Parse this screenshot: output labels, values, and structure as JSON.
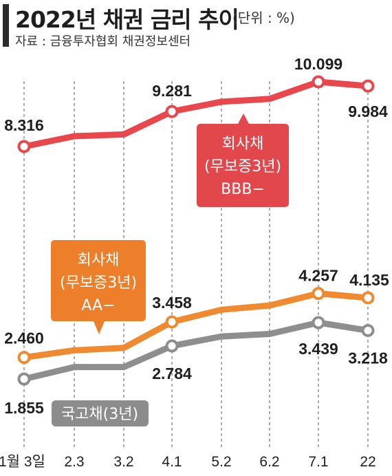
{
  "header": {
    "title": "2022년 채권 금리 추이",
    "unit": "(단위 : %)",
    "source": "자료 : 금융투자협회 채권정보센터"
  },
  "colors": {
    "bbb": "#e8474b",
    "bbb_box": "#e2474b",
    "aa": "#f08a30",
    "aa_box": "#ee7f2a",
    "gov": "#8e8e8e",
    "gov_box": "#8c8c8c",
    "grid": "#555555"
  },
  "chart_data": {
    "type": "line",
    "categories": [
      "1월 3일",
      "2.3",
      "3.2",
      "4.1",
      "5.2",
      "6.2",
      "7.1",
      "22"
    ],
    "series": [
      {
        "name": "회사채(무보증3년) BBB−",
        "name_lines": [
          "회사채",
          "(무보증3년)",
          "BBB−"
        ],
        "values": [
          8.316,
          8.6,
          8.65,
          9.281,
          9.55,
          9.63,
          10.099,
          9.984
        ],
        "labels": [
          "8.316",
          "",
          "",
          "9.281",
          "",
          "",
          "10.099",
          "9.984"
        ]
      },
      {
        "name": "회사채(무보증3년) AA−",
        "name_lines": [
          "회사채",
          "(무보증3년)",
          "AA−"
        ],
        "values": [
          2.46,
          2.66,
          2.73,
          3.458,
          3.8,
          3.92,
          4.257,
          4.135
        ],
        "labels": [
          "2.460",
          "",
          "",
          "3.458",
          "",
          "",
          "4.257",
          "4.135"
        ]
      },
      {
        "name": "국고채(3년)",
        "name_lines": [
          "국고채(3년)"
        ],
        "values": [
          1.855,
          2.19,
          2.19,
          2.784,
          3.05,
          3.12,
          3.439,
          3.218
        ],
        "labels": [
          "1.855",
          "",
          "",
          "2.784",
          "",
          "",
          "3.439",
          "3.218"
        ]
      }
    ],
    "xlabel": "",
    "ylabel": "",
    "grid": "vertical dashed"
  }
}
